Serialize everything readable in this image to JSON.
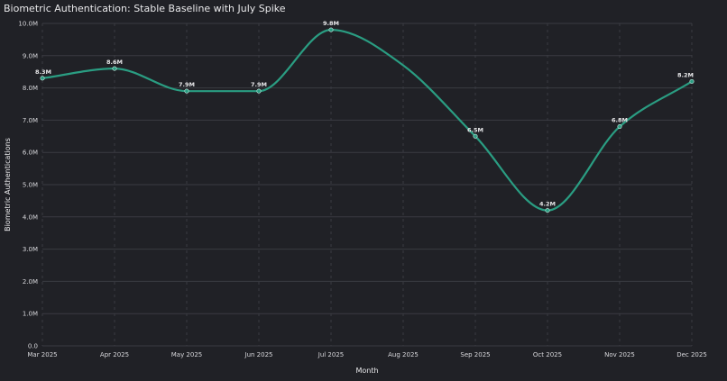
{
  "chart_data": {
    "type": "line",
    "title": "Biometric Authentication: Stable Baseline with July Spike",
    "xlabel": "Month",
    "ylabel": "Biometric Authentications",
    "categories": [
      "Mar 2025",
      "Apr 2025",
      "May 2025",
      "Jun 2025",
      "Jul 2025",
      "Aug 2025",
      "Sep 2025",
      "Oct 2025",
      "Nov 2025",
      "Dec 2025"
    ],
    "series": [
      {
        "values": [
          8.3,
          8.6,
          7.9,
          7.9,
          9.8,
          8.7,
          6.5,
          4.2,
          6.8,
          8.2
        ],
        "point_labels": [
          "8.3M",
          "8.6M",
          "7.9M",
          "7.9M",
          "9.8M",
          "",
          "6.5M",
          "4.2M",
          "6.8M",
          "8.2M"
        ],
        "color": "#2a9d82"
      }
    ],
    "ylim": [
      0,
      10
    ],
    "yticks": [
      0,
      1,
      2,
      3,
      4,
      5,
      6,
      7,
      8,
      9,
      10
    ],
    "ytick_labels": [
      "0.0",
      "1.0M",
      "2.0M",
      "3.0M",
      "4.0M",
      "5.0M",
      "6.0M",
      "7.0M",
      "8.0M",
      "9.0M",
      "10.0M"
    ],
    "grid": true,
    "curve": "smooth"
  },
  "colors": {
    "background": "#202126",
    "line": "#2a9d82",
    "grid": "#3a3b42",
    "text": "#e8e8ea"
  }
}
